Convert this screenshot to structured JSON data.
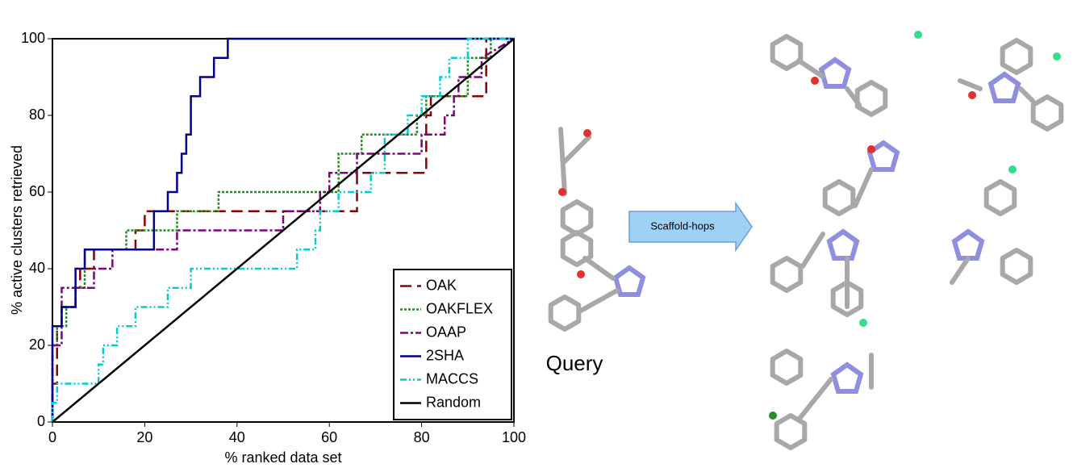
{
  "chart_data": {
    "type": "line",
    "xlabel": "% ranked data set",
    "ylabel": "% active clusters retrieved",
    "xlim": [
      0,
      100
    ],
    "ylim": [
      0,
      100
    ],
    "xticks": [
      0,
      20,
      40,
      60,
      80,
      100
    ],
    "yticks": [
      0,
      20,
      40,
      60,
      80,
      100
    ],
    "legend": "lower right",
    "series": [
      {
        "name": "OAK",
        "color": "#8b0000",
        "dash": "14,7",
        "x": [
          0,
          0,
          1,
          1,
          2,
          2,
          5,
          5,
          6,
          6,
          9,
          9,
          18,
          18,
          20,
          20,
          66,
          66,
          81,
          81,
          82,
          82,
          94,
          94,
          100
        ],
        "values": [
          0,
          10,
          10,
          25,
          25,
          30,
          30,
          35,
          35,
          40,
          40,
          45,
          45,
          50,
          50,
          55,
          55,
          65,
          65,
          80,
          80,
          85,
          85,
          100,
          100
        ]
      },
      {
        "name": "OAKFLEX",
        "color": "#228b22",
        "dash": "3,2",
        "x": [
          0,
          0,
          1,
          1,
          3,
          3,
          5,
          5,
          7,
          7,
          16,
          16,
          27,
          27,
          36,
          36,
          62,
          62,
          67,
          67,
          79,
          79,
          81,
          81,
          90,
          90,
          95,
          95,
          100
        ],
        "values": [
          0,
          20,
          20,
          25,
          25,
          30,
          30,
          35,
          35,
          45,
          45,
          50,
          50,
          55,
          55,
          60,
          60,
          70,
          70,
          75,
          75,
          80,
          80,
          85,
          85,
          95,
          95,
          100,
          100
        ]
      },
      {
        "name": "OAAP",
        "color": "#800080",
        "dash": "10,3,3,3",
        "x": [
          0,
          0,
          2,
          2,
          9,
          9,
          13,
          13,
          27,
          27,
          50,
          50,
          58,
          58,
          60,
          60,
          66,
          66,
          80,
          80,
          85,
          85,
          87,
          87,
          88,
          88,
          93,
          93,
          100
        ],
        "values": [
          0,
          20,
          20,
          35,
          35,
          40,
          40,
          45,
          45,
          50,
          50,
          55,
          55,
          60,
          60,
          65,
          65,
          70,
          70,
          75,
          75,
          80,
          80,
          85,
          85,
          90,
          90,
          95,
          100
        ]
      },
      {
        "name": "2SHA",
        "color": "#00008b",
        "dash": "none",
        "x": [
          0,
          0,
          2,
          2,
          5,
          5,
          7,
          7,
          22,
          22,
          25,
          25,
          27,
          27,
          28,
          28,
          29,
          29,
          30,
          30,
          32,
          32,
          35,
          35,
          38,
          38,
          100
        ],
        "values": [
          0,
          25,
          25,
          30,
          30,
          40,
          40,
          45,
          45,
          55,
          55,
          60,
          60,
          65,
          65,
          70,
          70,
          75,
          75,
          85,
          85,
          90,
          90,
          95,
          95,
          100,
          100
        ]
      },
      {
        "name": "MACCS",
        "color": "#00ced1",
        "dash": "8,3,2,3,2,3",
        "x": [
          0,
          0,
          1,
          1,
          10,
          10,
          11,
          11,
          14,
          14,
          18,
          18,
          25,
          25,
          30,
          30,
          53,
          53,
          57,
          57,
          58,
          58,
          62,
          62,
          69,
          69,
          72,
          72,
          77,
          77,
          80,
          80,
          84,
          84,
          86,
          86,
          90,
          90,
          100
        ],
        "values": [
          0,
          5,
          5,
          10,
          10,
          15,
          15,
          20,
          20,
          25,
          25,
          30,
          30,
          35,
          35,
          40,
          40,
          45,
          45,
          50,
          50,
          55,
          55,
          60,
          60,
          65,
          65,
          75,
          75,
          80,
          80,
          85,
          85,
          90,
          90,
          95,
          95,
          100,
          100
        ]
      },
      {
        "name": "Random",
        "color": "#000000",
        "dash": "none",
        "x": [
          0,
          100
        ],
        "values": [
          0,
          100
        ]
      }
    ]
  },
  "diagram": {
    "arrow_label": "Scaffold-hops",
    "query_label": "Query"
  }
}
